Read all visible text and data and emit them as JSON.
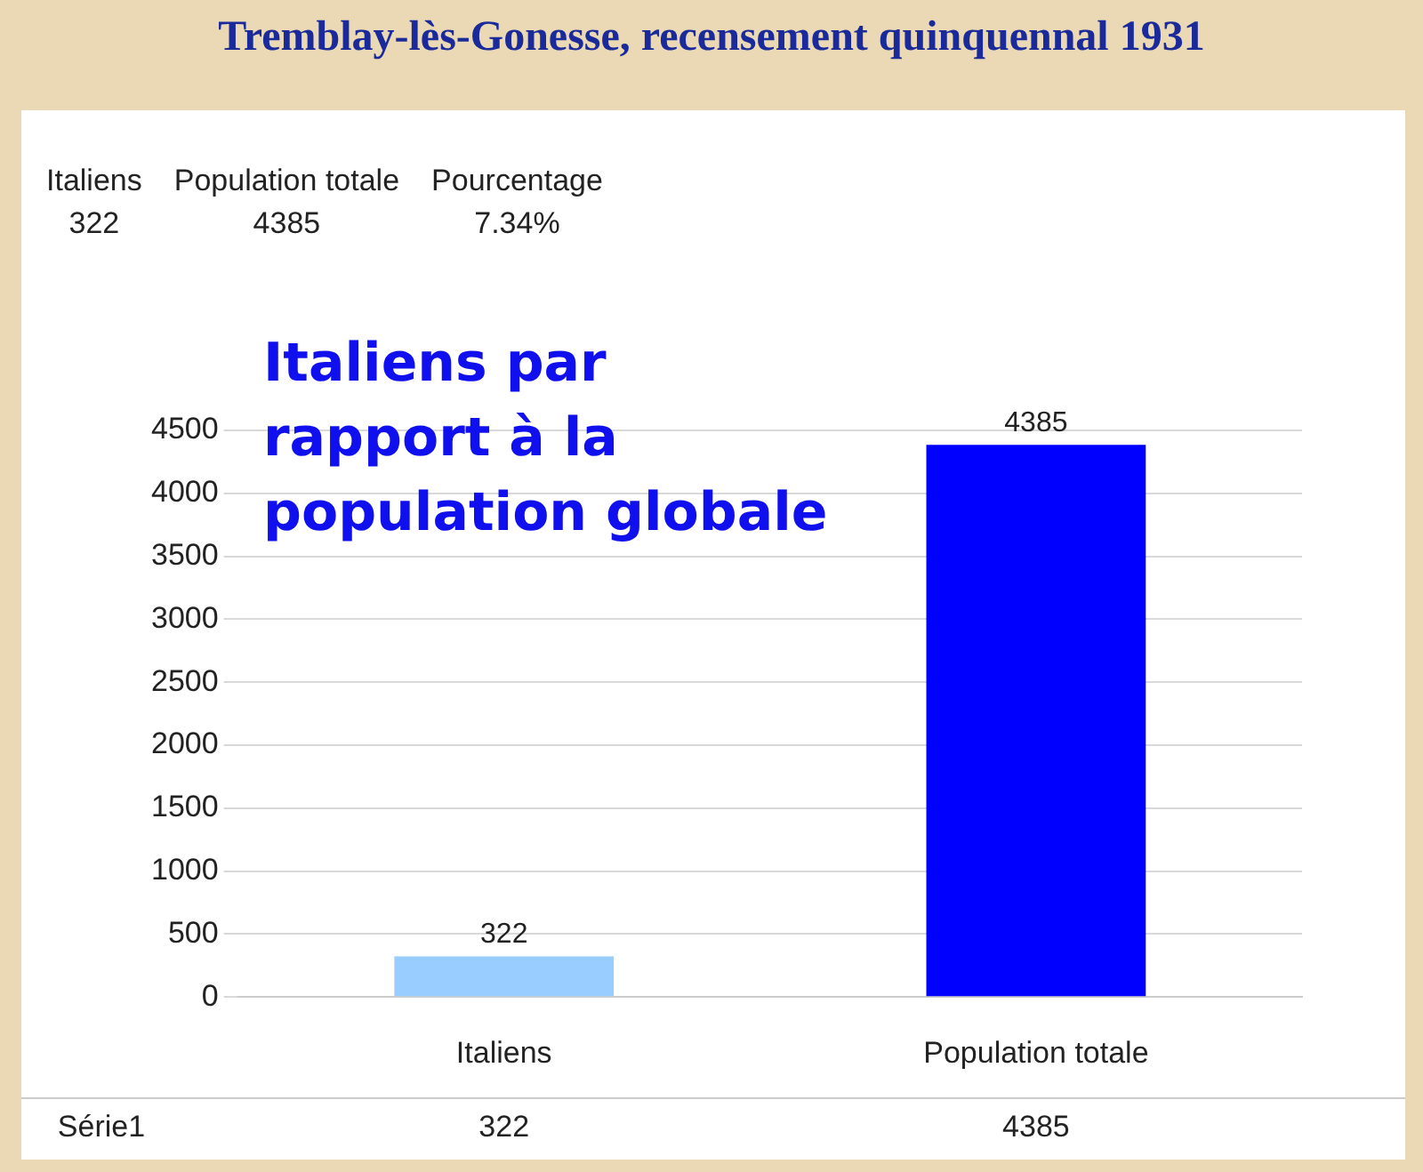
{
  "chart_data": {
    "type": "bar",
    "title": "Tremblay-lès-Gonesse, recensement quinquennal 1931",
    "subtitle": "Italiens par rapport à la population globale",
    "annotations": [
      "Italiens",
      "Population totale",
      "Pourcentage",
      "322",
      "4385",
      "7.34%"
    ],
    "categories": [
      "Italiens",
      "Population totale"
    ],
    "series": [
      {
        "name": "Série1",
        "colors": [
          "#99ccff",
          "#0000ff"
        ],
        "values": [
          322,
          4385
        ]
      }
    ],
    "ylim": [
      0,
      4500
    ],
    "yticks": [
      0,
      500,
      1000,
      1500,
      2000,
      2500,
      3000,
      3500,
      4000,
      4500
    ],
    "grid": "y",
    "legend": false,
    "data_labels": true
  }
}
